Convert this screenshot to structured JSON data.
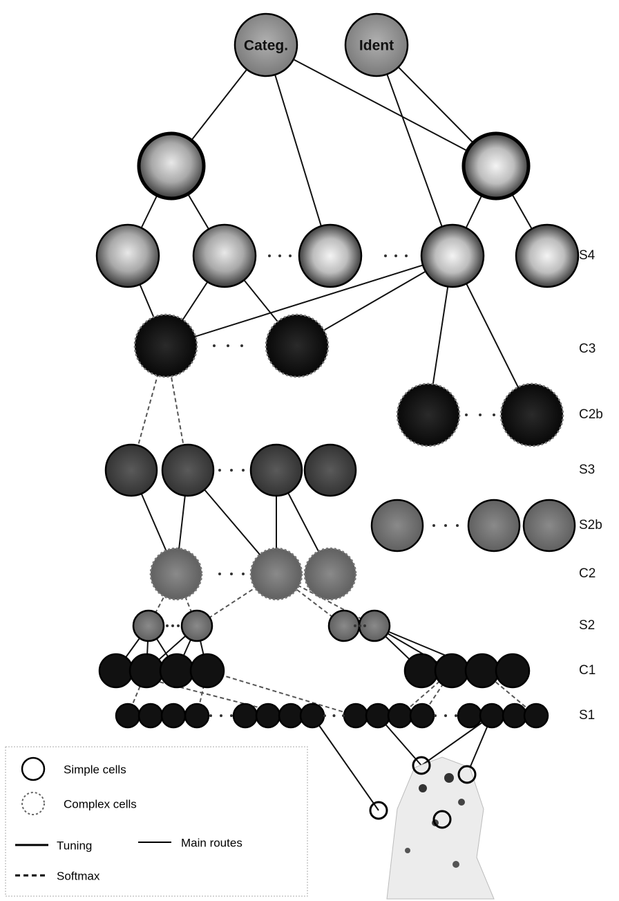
{
  "top_nodes": [
    "Categ.",
    "Ident"
  ],
  "layers": [
    "S4",
    "C3",
    "C2b",
    "S3",
    "S2b",
    "C2",
    "S2",
    "C1",
    "S1"
  ],
  "legend": {
    "simple": "Simple cells",
    "complex": "Complex cells",
    "tuning": "Tuning",
    "main_routes": "Main routes",
    "softmax": "Softmax"
  }
}
